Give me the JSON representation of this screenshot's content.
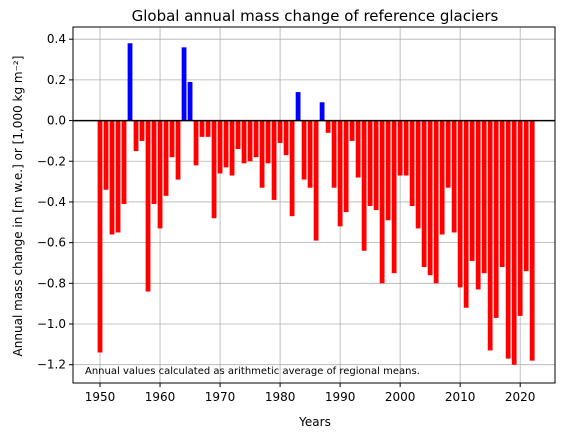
{
  "chart_data": {
    "type": "bar",
    "title": "Global annual mass change of reference glaciers",
    "xlabel": "Years",
    "ylabel": "Annual mass change in [m w.e.] or [1,000 kg m⁻²]",
    "annotation": "Annual values calculated as arithmetic average of regional means.",
    "xlim": [
      1945.5,
      2025.8
    ],
    "ylim": [
      -1.29,
      0.46
    ],
    "xticks": [
      1950,
      1960,
      1970,
      1980,
      1990,
      2000,
      2010,
      2020
    ],
    "yticks": [
      0.4,
      0.2,
      0.0,
      -0.2,
      -0.4,
      -0.6,
      -0.8,
      -1.0,
      -1.2
    ],
    "ytick_labels": [
      "0.4",
      "0.2",
      "0.0",
      "−0.2",
      "−0.4",
      "−0.6",
      "−0.8",
      "−1.0",
      "−1.2"
    ],
    "grid": true,
    "colors": {
      "positive": "#0000ff",
      "negative": "#ff0000",
      "zero_line": "#000000"
    },
    "x": [
      1950,
      1951,
      1952,
      1953,
      1954,
      1955,
      1956,
      1957,
      1958,
      1959,
      1960,
      1961,
      1962,
      1963,
      1964,
      1965,
      1966,
      1967,
      1968,
      1969,
      1970,
      1971,
      1972,
      1973,
      1974,
      1975,
      1976,
      1977,
      1978,
      1979,
      1980,
      1981,
      1982,
      1983,
      1984,
      1985,
      1986,
      1987,
      1988,
      1989,
      1990,
      1991,
      1992,
      1993,
      1994,
      1995,
      1996,
      1997,
      1998,
      1999,
      2000,
      2001,
      2002,
      2003,
      2004,
      2005,
      2006,
      2007,
      2008,
      2009,
      2010,
      2011,
      2012,
      2013,
      2014,
      2015,
      2016,
      2017,
      2018,
      2019,
      2020,
      2021,
      2022
    ],
    "values": [
      -1.14,
      -0.34,
      -0.56,
      -0.55,
      -0.41,
      0.38,
      -0.15,
      -0.1,
      -0.84,
      -0.41,
      -0.53,
      -0.37,
      -0.18,
      -0.29,
      0.36,
      0.19,
      -0.22,
      -0.08,
      -0.08,
      -0.48,
      -0.26,
      -0.23,
      -0.27,
      -0.14,
      -0.21,
      -0.2,
      -0.18,
      -0.33,
      -0.21,
      -0.39,
      -0.11,
      -0.17,
      -0.47,
      0.14,
      -0.29,
      -0.33,
      -0.59,
      0.09,
      -0.06,
      -0.33,
      -0.52,
      -0.45,
      -0.1,
      -0.28,
      -0.64,
      -0.42,
      -0.44,
      -0.8,
      -0.49,
      -0.75,
      -0.27,
      -0.27,
      -0.42,
      -0.53,
      -0.72,
      -0.76,
      -0.8,
      -0.56,
      -0.33,
      -0.55,
      -0.82,
      -0.92,
      -0.69,
      -0.83,
      -0.75,
      -1.13,
      -0.97,
      -0.72,
      -1.17,
      -1.2,
      -0.96,
      -0.74,
      -1.18
    ]
  }
}
